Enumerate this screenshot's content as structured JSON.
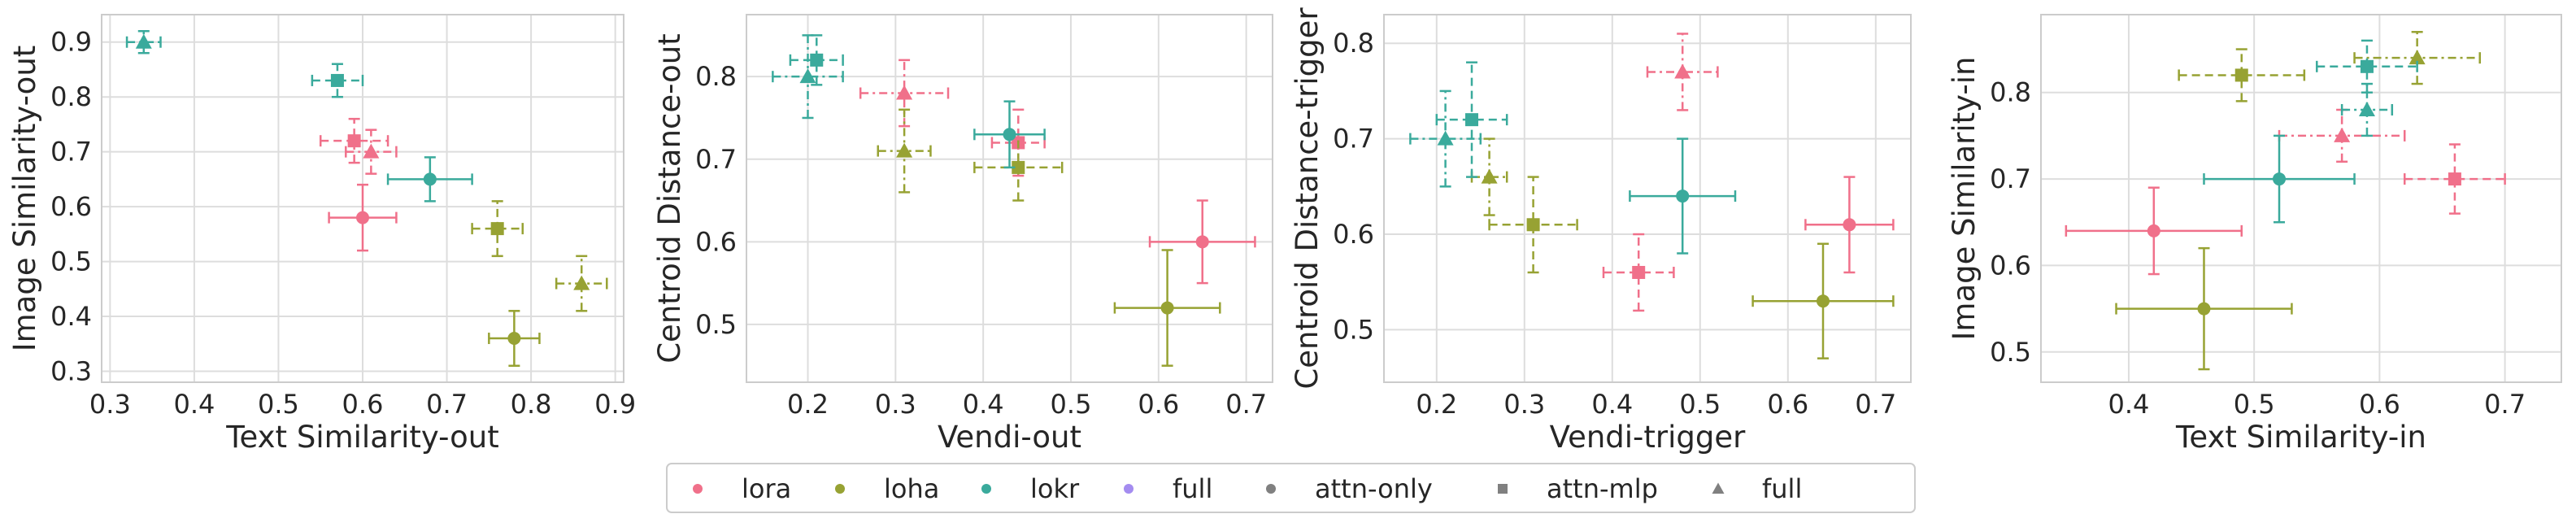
{
  "colors": {
    "lora": "#f0708a",
    "loha": "#97a233",
    "lokr": "#3aaa9c",
    "full": "#a48cf0",
    "marker_legend": "#808080",
    "grid": "#dddddd",
    "frame": "#cccccc"
  },
  "legend": {
    "items": [
      {
        "label": "lora",
        "color_key": "lora",
        "marker": "circle"
      },
      {
        "label": "loha",
        "color_key": "loha",
        "marker": "circle"
      },
      {
        "label": "lokr",
        "color_key": "lokr",
        "marker": "circle"
      },
      {
        "label": "full",
        "color_key": "full",
        "marker": "circle"
      },
      {
        "label": "attn-only",
        "color_key": "marker_legend",
        "marker": "circle"
      },
      {
        "label": "attn-mlp",
        "color_key": "marker_legend",
        "marker": "square"
      },
      {
        "label": "full",
        "color_key": "marker_legend",
        "marker": "triangle"
      }
    ]
  },
  "chart_data": [
    {
      "type": "scatter",
      "xlabel": "Text Similarity-out",
      "ylabel": "Image Similarity-out",
      "xlim": [
        0.29,
        0.91
      ],
      "ylim": [
        0.28,
        0.95
      ],
      "xticks": [
        0.3,
        0.4,
        0.5,
        0.6,
        0.7,
        0.8,
        0.9
      ],
      "yticks": [
        0.3,
        0.4,
        0.5,
        0.6,
        0.7,
        0.8,
        0.9
      ],
      "xtick_labels": [
        "0.3",
        "0.4",
        "0.5",
        "0.6",
        "0.7",
        "0.8",
        "0.9"
      ],
      "ytick_labels": [
        "0.3",
        "0.4",
        "0.5",
        "0.6",
        "0.7",
        "0.8",
        "0.9"
      ],
      "points": [
        {
          "method": "lora",
          "variant": "attn-only",
          "x": 0.6,
          "y": 0.58,
          "xerr": 0.04,
          "yerr": 0.06
        },
        {
          "method": "lora",
          "variant": "attn-mlp",
          "x": 0.59,
          "y": 0.72,
          "xerr": 0.04,
          "yerr": 0.04
        },
        {
          "method": "lora",
          "variant": "full",
          "x": 0.61,
          "y": 0.7,
          "xerr": 0.03,
          "yerr": 0.04
        },
        {
          "method": "loha",
          "variant": "attn-only",
          "x": 0.78,
          "y": 0.36,
          "xerr": 0.03,
          "yerr": 0.05
        },
        {
          "method": "loha",
          "variant": "attn-mlp",
          "x": 0.76,
          "y": 0.56,
          "xerr": 0.03,
          "yerr": 0.05
        },
        {
          "method": "loha",
          "variant": "full",
          "x": 0.86,
          "y": 0.46,
          "xerr": 0.03,
          "yerr": 0.05
        },
        {
          "method": "lokr",
          "variant": "attn-only",
          "x": 0.68,
          "y": 0.65,
          "xerr": 0.05,
          "yerr": 0.04
        },
        {
          "method": "lokr",
          "variant": "attn-mlp",
          "x": 0.57,
          "y": 0.83,
          "xerr": 0.03,
          "yerr": 0.03
        },
        {
          "method": "lokr",
          "variant": "full",
          "x": 0.34,
          "y": 0.9,
          "xerr": 0.02,
          "yerr": 0.02
        }
      ]
    },
    {
      "type": "scatter",
      "xlabel": "Vendi-out",
      "ylabel": "Centroid Distance-out",
      "xlim": [
        0.13,
        0.73
      ],
      "ylim": [
        0.43,
        0.875
      ],
      "xticks": [
        0.2,
        0.3,
        0.4,
        0.5,
        0.6,
        0.7
      ],
      "yticks": [
        0.5,
        0.6,
        0.7,
        0.8
      ],
      "xtick_labels": [
        "0.2",
        "0.3",
        "0.4",
        "0.5",
        "0.6",
        "0.7"
      ],
      "ytick_labels": [
        "0.5",
        "0.6",
        "0.7",
        "0.8"
      ],
      "points": [
        {
          "method": "lora",
          "variant": "attn-only",
          "x": 0.65,
          "y": 0.6,
          "xerr": 0.06,
          "yerr": 0.05
        },
        {
          "method": "lora",
          "variant": "attn-mlp",
          "x": 0.44,
          "y": 0.72,
          "xerr": 0.03,
          "yerr": 0.04
        },
        {
          "method": "lora",
          "variant": "full",
          "x": 0.31,
          "y": 0.78,
          "xerr": 0.05,
          "yerr": 0.04
        },
        {
          "method": "loha",
          "variant": "attn-only",
          "x": 0.61,
          "y": 0.52,
          "xerr": 0.06,
          "yerr": 0.07
        },
        {
          "method": "loha",
          "variant": "attn-mlp",
          "x": 0.44,
          "y": 0.69,
          "xerr": 0.05,
          "yerr": 0.04
        },
        {
          "method": "loha",
          "variant": "full",
          "x": 0.31,
          "y": 0.71,
          "xerr": 0.03,
          "yerr": 0.05
        },
        {
          "method": "lokr",
          "variant": "attn-only",
          "x": 0.43,
          "y": 0.73,
          "xerr": 0.04,
          "yerr": 0.04
        },
        {
          "method": "lokr",
          "variant": "attn-mlp",
          "x": 0.21,
          "y": 0.82,
          "xerr": 0.03,
          "yerr": 0.03
        },
        {
          "method": "lokr",
          "variant": "full",
          "x": 0.2,
          "y": 0.8,
          "xerr": 0.04,
          "yerr": 0.05
        }
      ]
    },
    {
      "type": "scatter",
      "xlabel": "Vendi-trigger",
      "ylabel": "Centroid Distance-trigger",
      "xlim": [
        0.14,
        0.74
      ],
      "ylim": [
        0.445,
        0.83
      ],
      "xticks": [
        0.2,
        0.3,
        0.4,
        0.5,
        0.6,
        0.7
      ],
      "yticks": [
        0.5,
        0.6,
        0.7,
        0.8
      ],
      "xtick_labels": [
        "0.2",
        "0.3",
        "0.4",
        "0.5",
        "0.6",
        "0.7"
      ],
      "ytick_labels": [
        "0.5",
        "0.6",
        "0.7",
        "0.8"
      ],
      "points": [
        {
          "method": "lora",
          "variant": "attn-only",
          "x": 0.67,
          "y": 0.61,
          "xerr": 0.05,
          "yerr": 0.05
        },
        {
          "method": "lora",
          "variant": "attn-mlp",
          "x": 0.43,
          "y": 0.56,
          "xerr": 0.04,
          "yerr": 0.04
        },
        {
          "method": "lora",
          "variant": "full",
          "x": 0.48,
          "y": 0.77,
          "xerr": 0.04,
          "yerr": 0.04
        },
        {
          "method": "loha",
          "variant": "attn-only",
          "x": 0.64,
          "y": 0.53,
          "xerr": 0.08,
          "yerr": 0.06
        },
        {
          "method": "loha",
          "variant": "attn-mlp",
          "x": 0.31,
          "y": 0.61,
          "xerr": 0.05,
          "yerr": 0.05
        },
        {
          "method": "loha",
          "variant": "full",
          "x": 0.26,
          "y": 0.66,
          "xerr": 0.02,
          "yerr": 0.04
        },
        {
          "method": "lokr",
          "variant": "attn-only",
          "x": 0.48,
          "y": 0.64,
          "xerr": 0.06,
          "yerr": 0.06
        },
        {
          "method": "lokr",
          "variant": "attn-mlp",
          "x": 0.24,
          "y": 0.72,
          "xerr": 0.04,
          "yerr": 0.06
        },
        {
          "method": "lokr",
          "variant": "full",
          "x": 0.21,
          "y": 0.7,
          "xerr": 0.04,
          "yerr": 0.05
        }
      ]
    },
    {
      "type": "scatter",
      "xlabel": "Text Similarity-in",
      "ylabel": "Image Similarity-in",
      "xlim": [
        0.33,
        0.745
      ],
      "ylim": [
        0.465,
        0.89
      ],
      "xticks": [
        0.4,
        0.5,
        0.6,
        0.7
      ],
      "yticks": [
        0.5,
        0.6,
        0.7,
        0.8
      ],
      "xtick_labels": [
        "0.4",
        "0.5",
        "0.6",
        "0.7"
      ],
      "ytick_labels": [
        "0.5",
        "0.6",
        "0.7",
        "0.8"
      ],
      "points": [
        {
          "method": "lora",
          "variant": "attn-only",
          "x": 0.42,
          "y": 0.64,
          "xerr": 0.07,
          "yerr": 0.05
        },
        {
          "method": "lora",
          "variant": "attn-mlp",
          "x": 0.66,
          "y": 0.7,
          "xerr": 0.04,
          "yerr": 0.04
        },
        {
          "method": "lora",
          "variant": "full",
          "x": 0.57,
          "y": 0.75,
          "xerr": 0.05,
          "yerr": 0.03
        },
        {
          "method": "loha",
          "variant": "attn-only",
          "x": 0.46,
          "y": 0.55,
          "xerr": 0.07,
          "yerr": 0.07
        },
        {
          "method": "loha",
          "variant": "attn-mlp",
          "x": 0.49,
          "y": 0.82,
          "xerr": 0.05,
          "yerr": 0.03
        },
        {
          "method": "loha",
          "variant": "full",
          "x": 0.63,
          "y": 0.84,
          "xerr": 0.05,
          "yerr": 0.03
        },
        {
          "method": "lokr",
          "variant": "attn-only",
          "x": 0.52,
          "y": 0.7,
          "xerr": 0.06,
          "yerr": 0.05
        },
        {
          "method": "lokr",
          "variant": "attn-mlp",
          "x": 0.59,
          "y": 0.83,
          "xerr": 0.04,
          "yerr": 0.03
        },
        {
          "method": "lokr",
          "variant": "full",
          "x": 0.59,
          "y": 0.78,
          "xerr": 0.02,
          "yerr": 0.03
        }
      ]
    }
  ]
}
